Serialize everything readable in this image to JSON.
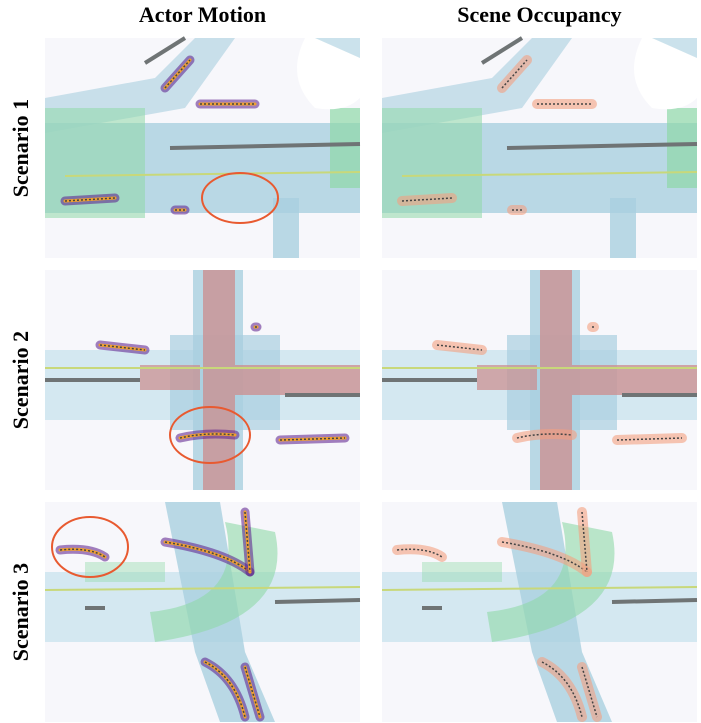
{
  "columns": [
    "Actor Motion",
    "Scene Occupancy"
  ],
  "rows": [
    "Scenario 1",
    "Scenario 2",
    "Scenario 3"
  ]
}
